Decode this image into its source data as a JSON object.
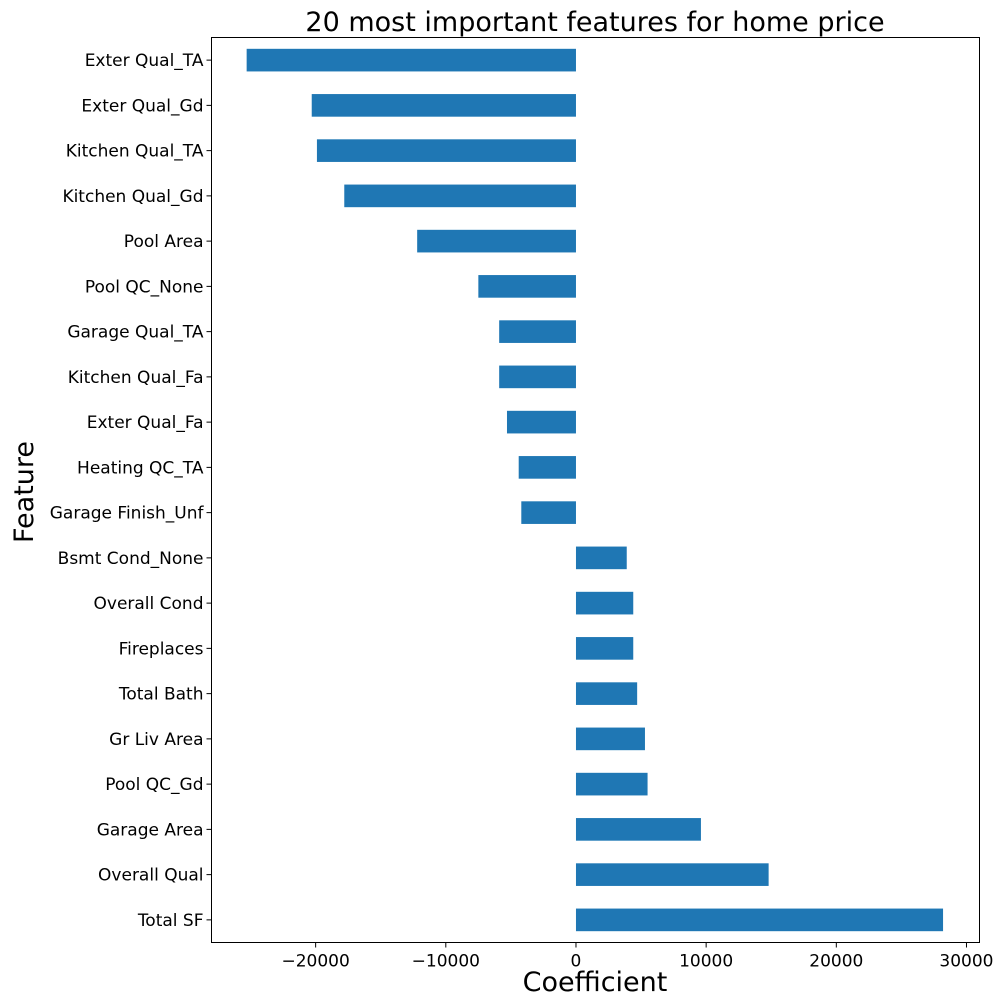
{
  "chart_data": {
    "type": "bar",
    "orientation": "horizontal",
    "title": "20 most important features for home price",
    "xlabel": "Coefficient",
    "ylabel": "Feature",
    "xlim": [
      -28000,
      31000
    ],
    "xticks": [
      -20000,
      -10000,
      0,
      10000,
      20000,
      30000
    ],
    "xtick_labels": [
      "−20000",
      "−10000",
      "0",
      "10000",
      "20000",
      "30000"
    ],
    "grid": false,
    "legend": "none",
    "bar_color": "#1f77b4",
    "categories": [
      "Exter Qual_TA",
      "Exter Qual_Gd",
      "Kitchen Qual_TA",
      "Kitchen Qual_Gd",
      "Pool Area",
      "Pool QC_None",
      "Garage Qual_TA",
      "Kitchen Qual_Fa",
      "Exter Qual_Fa",
      "Heating QC_TA",
      "Garage Finish_Unf",
      "Bsmt Cond_None",
      "Overall Cond",
      "Fireplaces",
      "Total Bath",
      "Gr Liv Area",
      "Pool QC_Gd",
      "Garage Area",
      "Overall Qual",
      "Total SF"
    ],
    "values": [
      -25300,
      -20300,
      -19900,
      -17800,
      -12200,
      -7500,
      -5900,
      -5900,
      -5300,
      -4400,
      -4200,
      3900,
      4400,
      4400,
      4700,
      5300,
      5500,
      9600,
      14800,
      28200
    ]
  }
}
